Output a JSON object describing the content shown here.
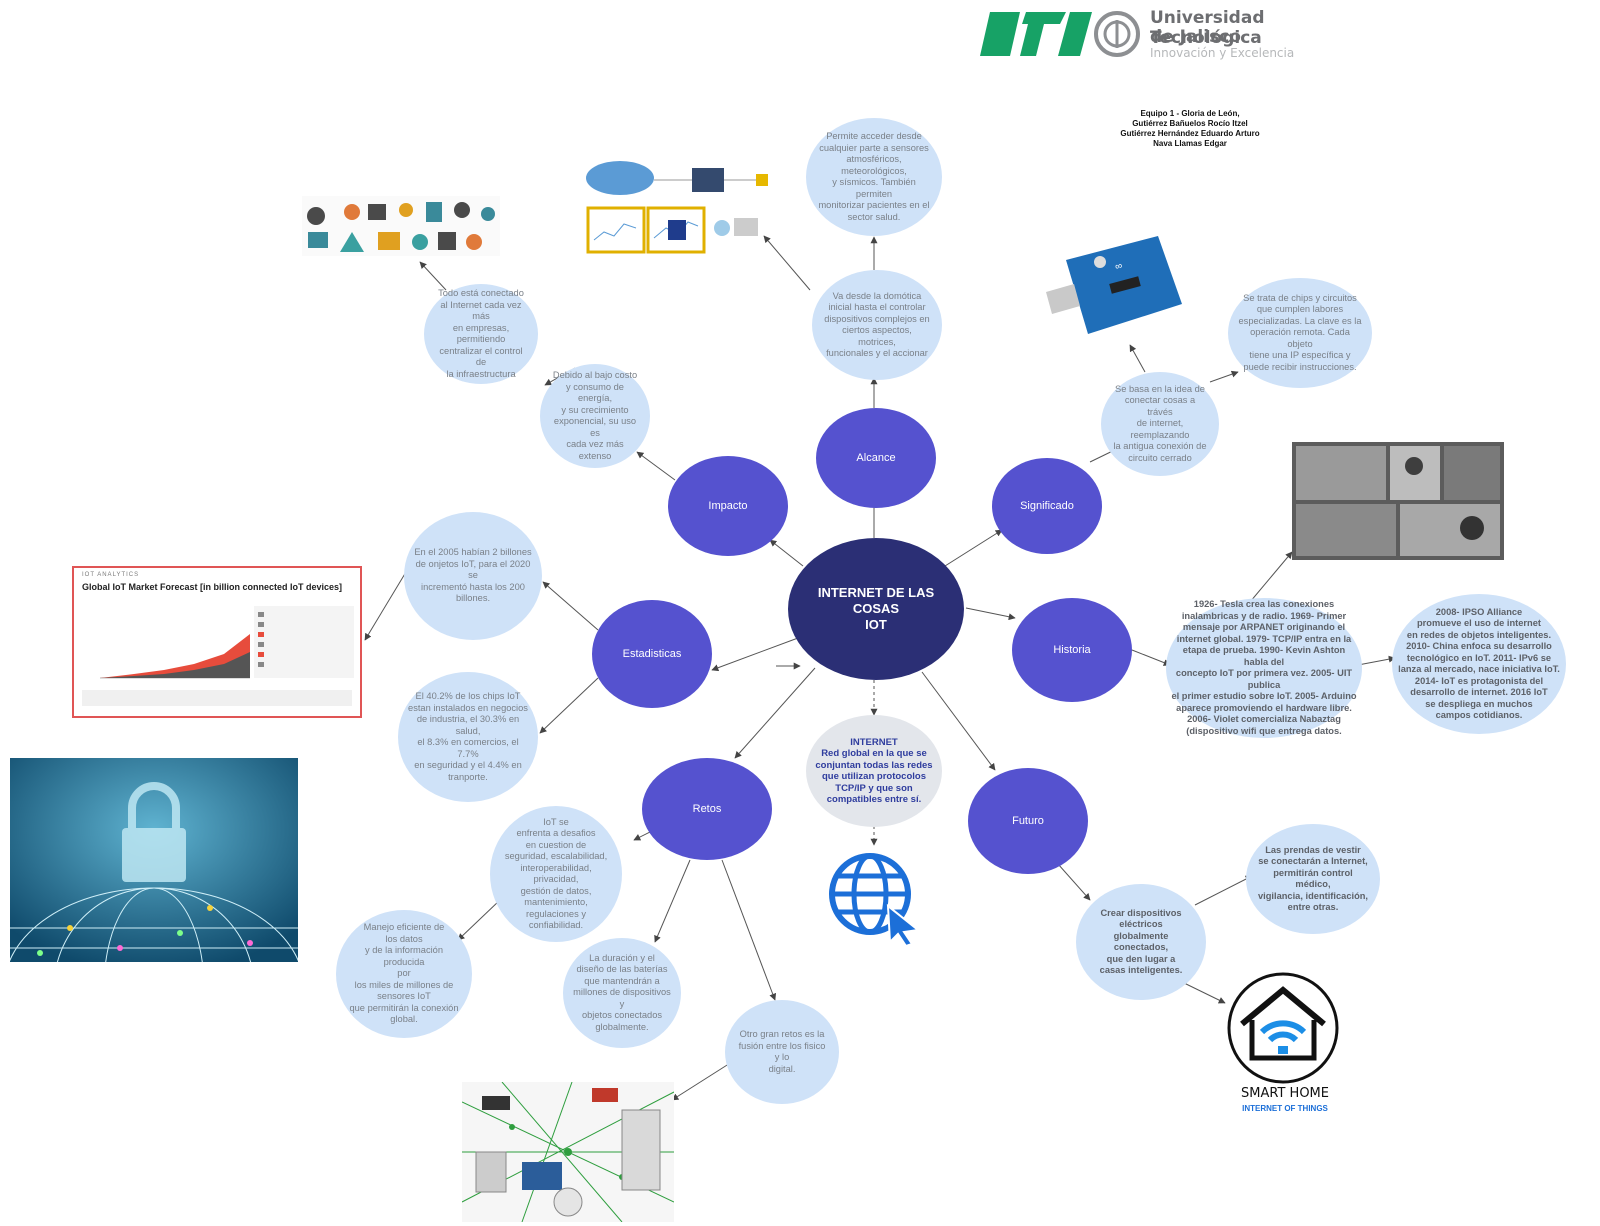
{
  "header": {
    "logo_mark": "UTJ",
    "university_name_line1": "Universidad Tecnológica",
    "university_name_line2": "de Jalisco",
    "slogan": "Innovación y Excelencia",
    "team": "Equipo 1 - Gloria de León,\nGutiérrez Bañuelos Rocío Itzel\nGutiérrez Hernández Eduardo Arturo\nNava Llamas Edgar"
  },
  "center": {
    "title": "INTERNET DE LAS\nCOSAS\nIOT"
  },
  "hubs": {
    "alcance": "Alcance",
    "impacto": "Impacto",
    "significado": "Significado",
    "estadisticas": "Estadisticas",
    "historia": "Historia",
    "retos": "Retos",
    "futuro": "Futuro"
  },
  "bubbles": {
    "alcance_top": "Permite acceder desde\ncualquier parte a sensores\natmosféricos, meteorológicos,\ny sísmicos. También permiten\nmonitorizar pacientes en el\nsector salud.",
    "alcance_mid": "Va desde la domótica\ninicial hasta el controlar\ndispositivos complejos en\nciertos aspectos, motrices,\nfuncionales y el accionar",
    "impacto_top": "Todo está conectado\nal Internet cada vez más\nen empresas, permitiendo\ncentralizar el control de\nla infraestructura",
    "impacto_mid": "Debido al bajo costo\ny consumo de energía,\ny su crecimiento\nexponencial, su uso es\ncada vez más extenso",
    "significado_mid": "Se basa en la idea de\nconectar cosas a trávés\nde internet, reemplazando\nla antigua conexión de\ncircuito cerrado",
    "significado_top": "Se trata de chips y circuitos\nque cumplen labores\nespecializadas. La clave es la\noperación remota. Cada objeto\ntiene una IP específica y\npuede recibir instrucciones.",
    "estadisticas_top": "En el 2005 habían 2 billones\nde onjetos IoT, para el 2020  se\nincrementó hasta los 200\nbillones.",
    "estadisticas_bottom": "El 40.2% de los chips IoT\nestan instalados en negocios\nde industria, el 30.3% en salud,\nel 8.3% en comercios, el 7.7%\nen seguridad y el 4.4% en\ntranporte.",
    "historia_1": "1926- Tesla crea las conexiones\ninalambricas y de radio. 1969- Primer\nmensaje por ARPANET originando el\ninternet global.  1979- TCP/IP entra en la\netapa de prueba. 1990- Kevin Ashton habla del\nconcepto IoT por primera vez. 2005- UIT publica\nel primer estudio sobre IoT. 2005- Arduino\naparece promoviendo el hardware libre.\n2006- Violet comercializa Nabaztag\n(dispositivo wifi que entrega datos.",
    "historia_2": "2008- IPSO Alliance\npromueve el uso de internet\nen redes de objetos inteligentes.\n2010- China enfoca su desarrollo\ntecnológico en IoT. 2011- IPv6 se\nlanza al mercado, nace iniciativa IoT.\n2014- IoT es protagonista del\ndesarrollo de internet. 2016 IoT\nse despliega en muchos\ncampos cotidianos.",
    "internet": "INTERNET\nRed global en la que se\nconjuntan todas las redes\nque utilizan protocolos\nTCP/IP y que son\ncompatibles entre sí.",
    "retos_1": "IoT se\nenfrenta a desafios\nen cuestion de\nseguridad, escalabilidad,\ninteroperabilidad, privacidad,\ngestión de datos,\nmantenimiento,\nregulaciones y\nconfiabilidad.",
    "retos_2": "Manejo eficiente de\nlos datos\ny de la información producida\npor\nlos miles de millones de\nsensores IoT\nque permitirán la conexión\nglobal.",
    "retos_3": "La duración y el\ndiseño de las baterías\nque mantendrán a\nmillones de dispositivos y\nobjetos conectados\nglobalmente.",
    "retos_4": "Otro gran retos es la\nfusión entre los fisico y lo\ndigital.",
    "futuro_1": "Crear dispositivos\neléctricos\nglobalmente conectados,\nque den lugar a\ncasas inteligentes.",
    "futuro_2": "Las prendas de vestir\nse conectarán a Internet,\npermitirán control médico,\nvigilancia, identificación,\nentre otras."
  },
  "images": {
    "stats_chart_brand": "IOT ANALYTICS",
    "stats_chart_title": "Global IoT Market Forecast [in billion connected IoT devices]",
    "smart_home_line1": "SMART HOME",
    "smart_home_line2": "INTERNET OF THINGS"
  },
  "colors": {
    "hub": "#5552cf",
    "center": "#2b2f75",
    "bubble": "#cfe2f8",
    "connector": "#444444",
    "utj_green": "#17a266"
  }
}
